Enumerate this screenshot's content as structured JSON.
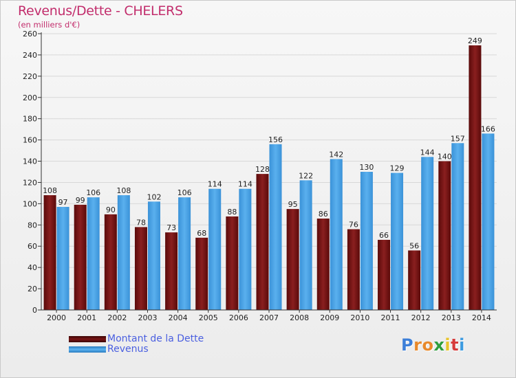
{
  "title": "Revenus/Dette - CHELERS",
  "subtitle": "(en milliers d'€)",
  "logo_text": "Proxiti",
  "colors": {
    "title": "#c22d6c",
    "dette": "#7a1515",
    "revenus": "#3d9be0",
    "legend_text": "#4a5fe0"
  },
  "chart_data": {
    "type": "bar",
    "title": "Revenus/Dette - CHELERS",
    "subtitle": "(en milliers d'€)",
    "xlabel": "",
    "ylabel": "",
    "ylim": [
      0,
      260
    ],
    "yticks": [
      0,
      20,
      40,
      60,
      80,
      100,
      120,
      140,
      160,
      180,
      200,
      220,
      240,
      260
    ],
    "grid": true,
    "legend_position": "bottom-left",
    "categories": [
      "2000",
      "2001",
      "2002",
      "2003",
      "2004",
      "2005",
      "2006",
      "2007",
      "2008",
      "2009",
      "2010",
      "2011",
      "2012",
      "2013",
      "2014"
    ],
    "series": [
      {
        "name": "Montant de la Dette",
        "color": "#7a1515",
        "values": [
          108,
          99,
          90,
          78,
          73,
          68,
          88,
          128,
          95,
          86,
          76,
          66,
          56,
          140,
          249
        ]
      },
      {
        "name": "Revenus",
        "color": "#3d9be0",
        "values": [
          97,
          106,
          108,
          102,
          106,
          114,
          114,
          156,
          122,
          142,
          130,
          129,
          144,
          157,
          166
        ]
      }
    ]
  }
}
